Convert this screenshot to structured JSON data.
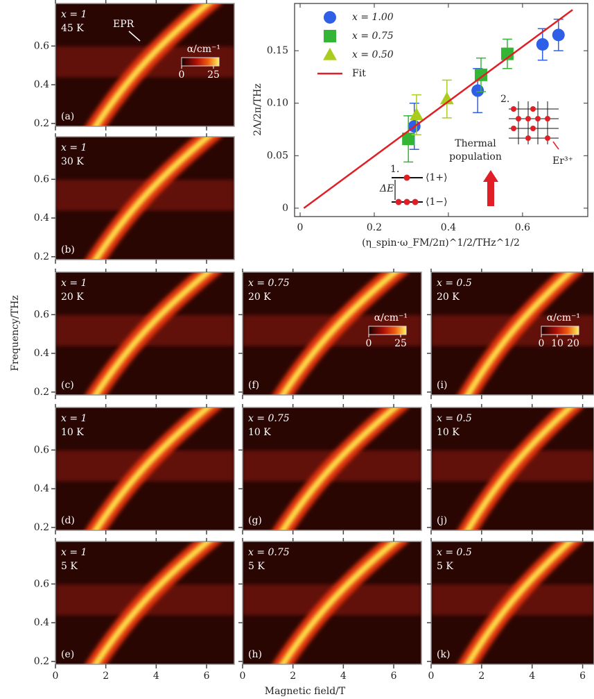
{
  "figure": {
    "xlabel": "Magnetic field/T",
    "ylabel": "Frequency/THz"
  },
  "chart_data": [
    {
      "type": "scatter",
      "ylabel": "2Λ/2π/THz",
      "xlabel": "(η_spin·ω_FM/2π)^1/2/THz^1/2",
      "xlim": [
        -0.015,
        0.776
      ],
      "ylim": [
        -0.008,
        0.195
      ],
      "xticks": [
        0,
        0.2,
        0.4,
        0.6
      ],
      "yticks": [
        0,
        0.05,
        {
          "value": 0.1,
          "label": "0.10"
        },
        0.15
      ],
      "legend": "upper left",
      "series": [
        {
          "name": "x = 1.00",
          "color": "#2f5fe6",
          "marker": "circle",
          "x": [
            0.308,
            0.479,
            0.654,
            0.697
          ],
          "values": [
            0.078,
            0.112,
            0.156,
            0.165
          ],
          "errors": [
            0.022,
            0.021,
            0.015,
            0.015
          ]
        },
        {
          "name": "x = 0.75",
          "color": "#35b535",
          "marker": "square",
          "x": [
            0.292,
            0.488,
            0.559
          ],
          "values": [
            0.066,
            0.127,
            0.147
          ],
          "errors": [
            0.022,
            0.016,
            0.014
          ]
        },
        {
          "name": "x = 0.50",
          "color": "#a9cc1f",
          "marker": "triangle",
          "x": [
            0.314,
            0.396
          ],
          "values": [
            0.089,
            0.104
          ],
          "errors": [
            0.019,
            0.018
          ]
        },
        {
          "name": "Fit",
          "color": "#e01e26",
          "marker": "line",
          "x": [
            0.01,
            0.735
          ],
          "values": [
            0,
            0.189
          ]
        }
      ],
      "annotations": {
        "thermal": [
          "Thermal",
          "population"
        ],
        "ion": "Er³⁺",
        "label1": "1.",
        "label2": "2.",
        "gap": "ΔE",
        "upper": "⟨1+⟩",
        "lower": "⟨1−⟩"
      }
    },
    {
      "type": "heatmap",
      "panel": "(a)",
      "composition": "x = 1",
      "temperature": "45 K",
      "annotation": "EPR",
      "colorbar": {
        "label": "α/cm⁻¹",
        "ticks": [
          0,
          25
        ]
      },
      "xlim": [
        0,
        7.1
      ],
      "ylim": [
        0.185,
        0.82
      ],
      "xticks": [
        0,
        2,
        4,
        6
      ],
      "yticks": [
        0.2,
        0.4,
        0.6
      ]
    },
    {
      "type": "heatmap",
      "panel": "(b)",
      "composition": "x = 1",
      "temperature": "30 K",
      "xlim": [
        0,
        7.1
      ],
      "ylim": [
        0.185,
        0.82
      ],
      "xticks": [
        0,
        2,
        4,
        6
      ],
      "yticks": [
        0.2,
        0.4,
        0.6
      ]
    },
    {
      "type": "heatmap",
      "panel": "(c)",
      "composition": "x = 1",
      "temperature": "20 K",
      "xlim": [
        0,
        7.1
      ],
      "ylim": [
        0.185,
        0.82
      ],
      "xticks": [
        0,
        2,
        4,
        6
      ],
      "yticks": [
        0.2,
        0.4,
        0.6
      ]
    },
    {
      "type": "heatmap",
      "panel": "(d)",
      "composition": "x = 1",
      "temperature": "10 K",
      "xlim": [
        0,
        7.1
      ],
      "ylim": [
        0.185,
        0.82
      ],
      "xticks": [
        0,
        2,
        4,
        6
      ],
      "yticks": [
        0.2,
        0.4,
        0.6
      ]
    },
    {
      "type": "heatmap",
      "panel": "(e)",
      "composition": "x = 1",
      "temperature": "5 K",
      "xlim": [
        0,
        7.1
      ],
      "ylim": [
        0.185,
        0.82
      ],
      "xticks": [
        0,
        2,
        4,
        6
      ],
      "yticks": [
        0.2,
        0.4,
        0.6
      ]
    },
    {
      "type": "heatmap",
      "panel": "(f)",
      "composition": "x = 0.75",
      "temperature": "20 K",
      "colorbar": {
        "label": "α/cm⁻¹",
        "ticks": [
          0,
          25
        ]
      },
      "xlim": [
        0,
        7.1
      ],
      "ylim": [
        0.185,
        0.82
      ],
      "xticks": [
        0,
        2,
        4,
        6
      ],
      "yticks": [
        0.2,
        0.4,
        0.6
      ]
    },
    {
      "type": "heatmap",
      "panel": "(g)",
      "composition": "x = 0.75",
      "temperature": "10 K",
      "xlim": [
        0,
        7.1
      ],
      "ylim": [
        0.185,
        0.82
      ],
      "xticks": [
        0,
        2,
        4,
        6
      ],
      "yticks": [
        0.2,
        0.4,
        0.6
      ]
    },
    {
      "type": "heatmap",
      "panel": "(h)",
      "composition": "x = 0.75",
      "temperature": "5 K",
      "xlim": [
        0,
        7.1
      ],
      "ylim": [
        0.185,
        0.82
      ],
      "xticks": [
        0,
        2,
        4,
        6
      ],
      "yticks": [
        0.2,
        0.4,
        0.6
      ]
    },
    {
      "type": "heatmap",
      "panel": "(i)",
      "composition": "x = 0.5",
      "temperature": "20 K",
      "colorbar": {
        "label": "α/cm⁻¹",
        "ticks": [
          0,
          10,
          20
        ]
      },
      "xlim": [
        0,
        6.45
      ],
      "ylim": [
        0.185,
        0.82
      ],
      "xticks": [
        0,
        2,
        4,
        6
      ],
      "yticks": [
        0.2,
        0.4,
        0.6
      ]
    },
    {
      "type": "heatmap",
      "panel": "(j)",
      "composition": "x = 0.5",
      "temperature": "10 K",
      "xlim": [
        0,
        6.45
      ],
      "ylim": [
        0.185,
        0.82
      ],
      "xticks": [
        0,
        2,
        4,
        6
      ],
      "yticks": [
        0.2,
        0.4,
        0.6
      ]
    },
    {
      "type": "heatmap",
      "panel": "(k)",
      "composition": "x = 0.5",
      "temperature": "5 K",
      "xlim": [
        0,
        6.45
      ],
      "ylim": [
        0.185,
        0.82
      ],
      "xticks": [
        0,
        2,
        4,
        6
      ],
      "yticks": [
        0.2,
        0.4,
        0.6
      ]
    }
  ]
}
